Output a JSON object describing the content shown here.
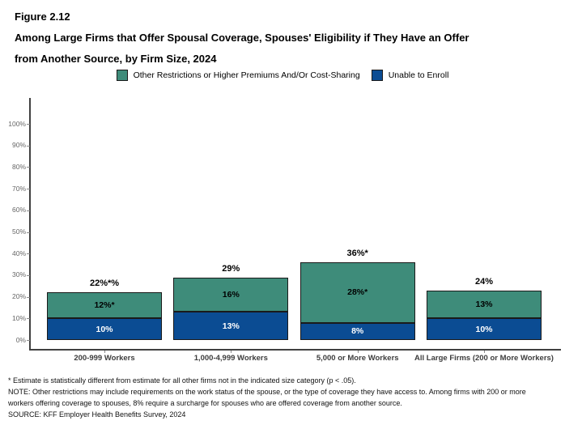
{
  "figure": {
    "number": "Figure 2.12",
    "title_lines": [
      "Among Large Firms that Offer Spousal Coverage, Spouses' Eligibility if They Have an Offer",
      "from Another Source, by Firm Size, 2024"
    ]
  },
  "legend": [
    {
      "label": "Other Restrictions or Higher Premiums And/Or Cost-Sharing",
      "color": "#3E8C7A"
    },
    {
      "label": "Unable to Enroll",
      "color": "#0B4C93"
    }
  ],
  "chart_data": {
    "type": "bar",
    "stacked": true,
    "title": "Among Large Firms that Offer Spousal Coverage, Spouses' Eligibility if They Have an Offer from Another Source, by Firm Size, 2024",
    "categories": [
      "200-999 Workers",
      "1,000-4,999 Workers",
      "5,000 or More Workers",
      "All Large Firms (200 or More Workers)"
    ],
    "series": [
      {
        "name": "Unable to Enroll",
        "color": "#0B4C93",
        "label_color": "#ffffff",
        "values": [
          10,
          13,
          8,
          10
        ],
        "value_labels": [
          "10%",
          "13%",
          "8%",
          "10%"
        ]
      },
      {
        "name": "Other Restrictions or Higher Premiums And/Or Cost-Sharing",
        "color": "#3E8C7A",
        "label_color": "#000000",
        "values": [
          12,
          16,
          28,
          13
        ],
        "value_labels": [
          "12%*",
          "16%",
          "28%*",
          "13%"
        ]
      }
    ],
    "totals": [
      22,
      29,
      36,
      24
    ],
    "total_labels": [
      "22%*%",
      "29%",
      "36%*",
      "24%"
    ],
    "ylim": [
      0,
      100
    ],
    "yticks": [
      "0%",
      "10%",
      "20%",
      "30%",
      "40%",
      "50%",
      "60%",
      "70%",
      "80%",
      "90%",
      "100%"
    ],
    "grid": false,
    "legend_position": "top-center"
  },
  "footnotes": {
    "significance": "* Estimate is statistically different from estimate for all other firms not in the indicated size category (p < .05).",
    "note": "NOTE: Other restrictions may include requirements on the work status of the spouse, or the type of coverage they have access to. Among firms with 200 or more workers offering coverage to spouses, 8% require a surcharge for spouses who are offered coverage from another source.",
    "source": "SOURCE: KFF Employer Health Benefits Survey, 2024"
  }
}
